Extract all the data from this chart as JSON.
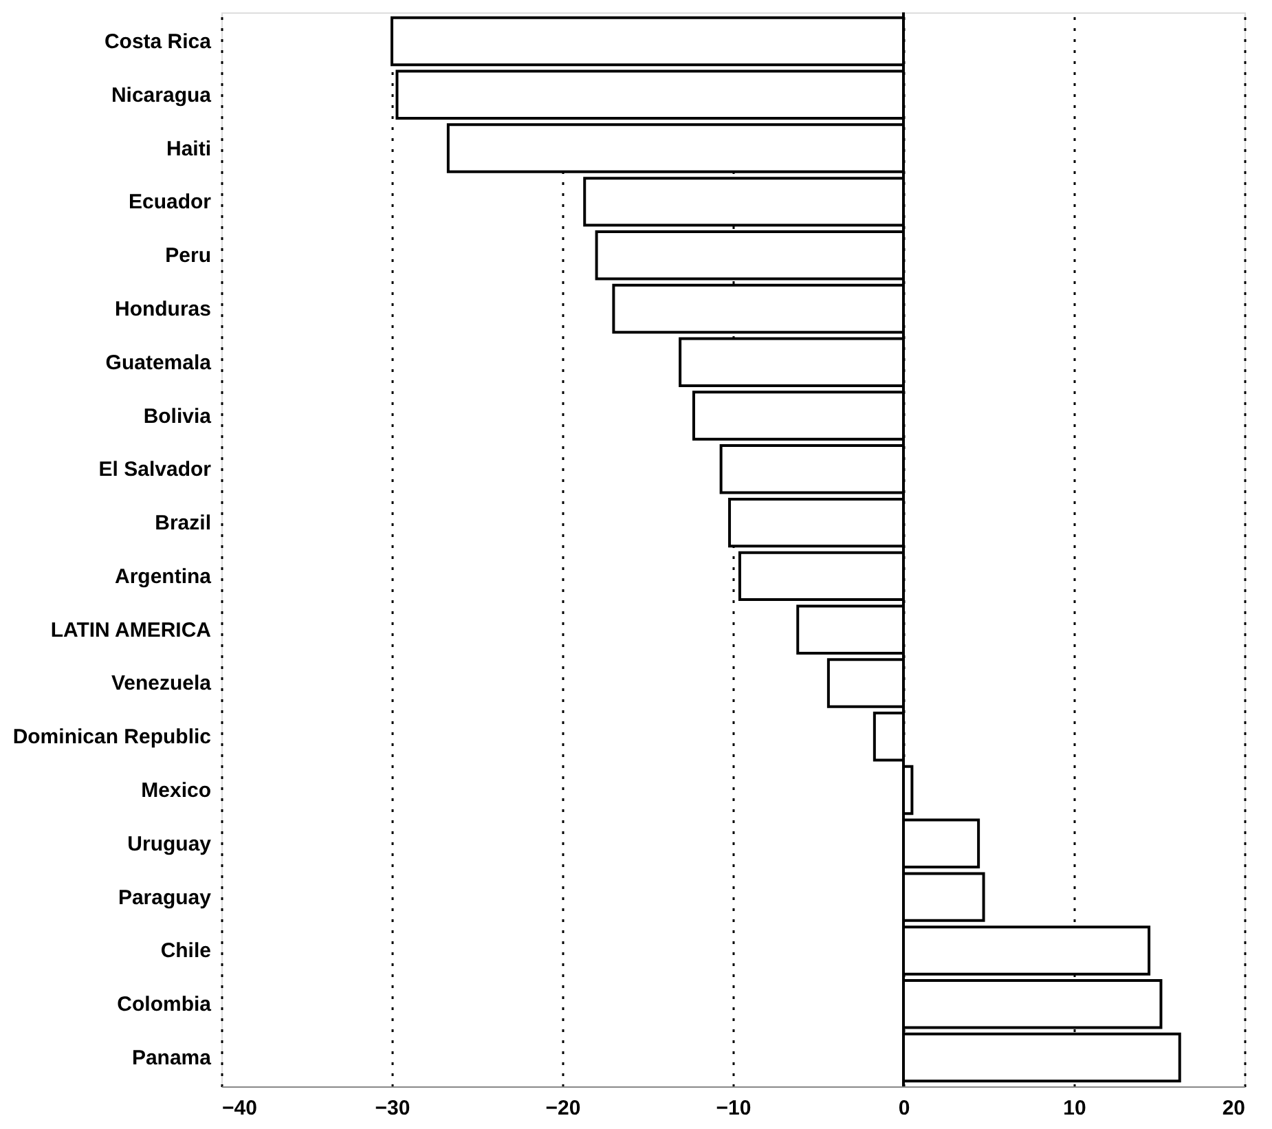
{
  "chart_data": {
    "type": "bar",
    "orientation": "horizontal",
    "categories": [
      "Costa Rica",
      "Nicaragua",
      "Haiti",
      "Ecuador",
      "Peru",
      "Honduras",
      "Guatemala",
      "Bolivia",
      "El Salvador",
      "Brazil",
      "Argentina",
      "LATIN AMERICA",
      "Venezuela",
      "Dominican Republic",
      "Mexico",
      "Uruguay",
      "Paraguay",
      "Chile",
      "Colombia",
      "Panama"
    ],
    "values": [
      -30.0,
      -29.7,
      -26.7,
      -18.7,
      -18.0,
      -17.0,
      -13.1,
      -12.3,
      -10.7,
      -10.2,
      -9.6,
      -6.2,
      -4.4,
      -1.7,
      0.5,
      4.4,
      4.7,
      14.4,
      15.1,
      16.2
    ],
    "color": "#ffffff",
    "xlim": [
      -40,
      20
    ],
    "xticks": [
      -40,
      -30,
      -20,
      -10,
      0,
      10,
      20
    ],
    "grid": "x",
    "ref_lines": [
      {
        "axis": "x",
        "value": 0,
        "color": "#000000"
      }
    ]
  }
}
